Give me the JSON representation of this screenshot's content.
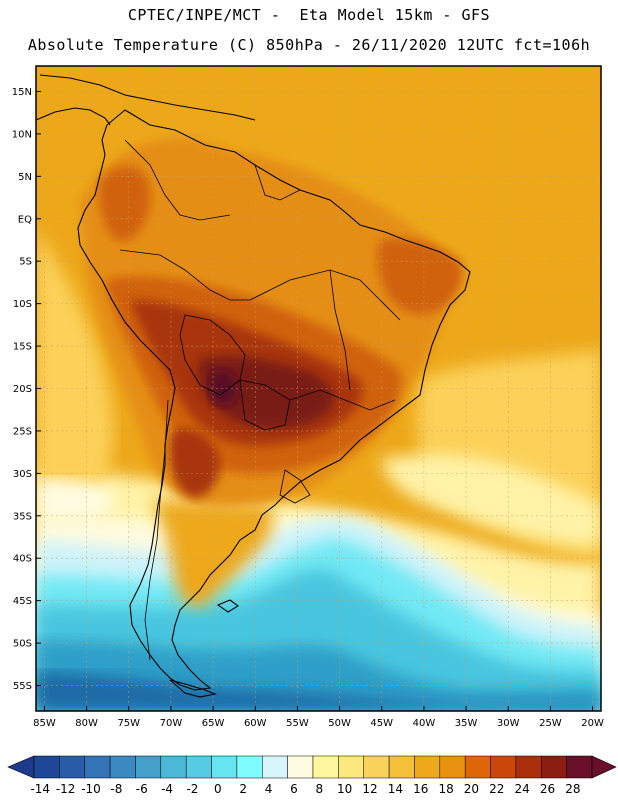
{
  "title": {
    "line1": "CPTEC/INPE/MCT -  Eta Model 15km - GFS",
    "line2": "Absolute Temperature (C) 850hPa - 26/11/2020 12UTC fct=106h"
  },
  "map": {
    "lat_range": [
      -58,
      18
    ],
    "lon_range": [
      -86,
      -19
    ],
    "lat_ticks": [
      {
        "value": 15,
        "label": "15N"
      },
      {
        "value": 10,
        "label": "10N"
      },
      {
        "value": 5,
        "label": "5N"
      },
      {
        "value": 0,
        "label": "EQ"
      },
      {
        "value": -5,
        "label": "5S"
      },
      {
        "value": -10,
        "label": "10S"
      },
      {
        "value": -15,
        "label": "15S"
      },
      {
        "value": -20,
        "label": "20S"
      },
      {
        "value": -25,
        "label": "25S"
      },
      {
        "value": -30,
        "label": "30S"
      },
      {
        "value": -35,
        "label": "35S"
      },
      {
        "value": -40,
        "label": "40S"
      },
      {
        "value": -45,
        "label": "45S"
      },
      {
        "value": -50,
        "label": "50S"
      },
      {
        "value": -55,
        "label": "55S"
      }
    ],
    "lon_ticks": [
      {
        "value": -85,
        "label": "85W"
      },
      {
        "value": -80,
        "label": "80W"
      },
      {
        "value": -75,
        "label": "75W"
      },
      {
        "value": -70,
        "label": "70W"
      },
      {
        "value": -65,
        "label": "65W"
      },
      {
        "value": -60,
        "label": "60W"
      },
      {
        "value": -55,
        "label": "55W"
      },
      {
        "value": -50,
        "label": "50W"
      },
      {
        "value": -45,
        "label": "45W"
      },
      {
        "value": -40,
        "label": "40W"
      },
      {
        "value": -35,
        "label": "35W"
      },
      {
        "value": -30,
        "label": "30W"
      },
      {
        "value": -25,
        "label": "25W"
      },
      {
        "value": -20,
        "label": "20W"
      }
    ]
  },
  "colorbar": {
    "labels": [
      "-14",
      "-12",
      "-10",
      "-8",
      "-6",
      "-4",
      "-2",
      "0",
      "2",
      "4",
      "6",
      "8",
      "10",
      "12",
      "14",
      "16",
      "18",
      "20",
      "22",
      "24",
      "26",
      "28"
    ],
    "low_color": "#1d3a8c",
    "high_color": "#6a0f2a",
    "colors": [
      "#1f4799",
      "#2a5ca8",
      "#3474b6",
      "#3c88c0",
      "#44a0c9",
      "#4cb7d6",
      "#55cce2",
      "#66e4ef",
      "#7ffcff",
      "#d6f6fb",
      "#fffbe0",
      "#fff7a0",
      "#fde880",
      "#f8d35c",
      "#f4c03c",
      "#eea91c",
      "#e89210",
      "#dd6608",
      "#c9470a",
      "#aa2f0c",
      "#8b1d12",
      "#6a0f2a"
    ]
  },
  "colors": {
    "warm": "#eda81a",
    "orange": "#e58e12",
    "dark_orange": "#d0620c",
    "brown": "#a8360e",
    "dark_brown": "#7a1c14",
    "maroon": "#5a0c26",
    "yellow": "#fbd15a",
    "pale_yellow": "#fff3a8",
    "cream": "#fffbe0",
    "pale_cyan": "#cdf3fa",
    "cyan": "#72e9f5",
    "light_blue": "#48c6df",
    "mid_blue": "#2f9fc8",
    "deep_blue": "#1f6aa6"
  }
}
